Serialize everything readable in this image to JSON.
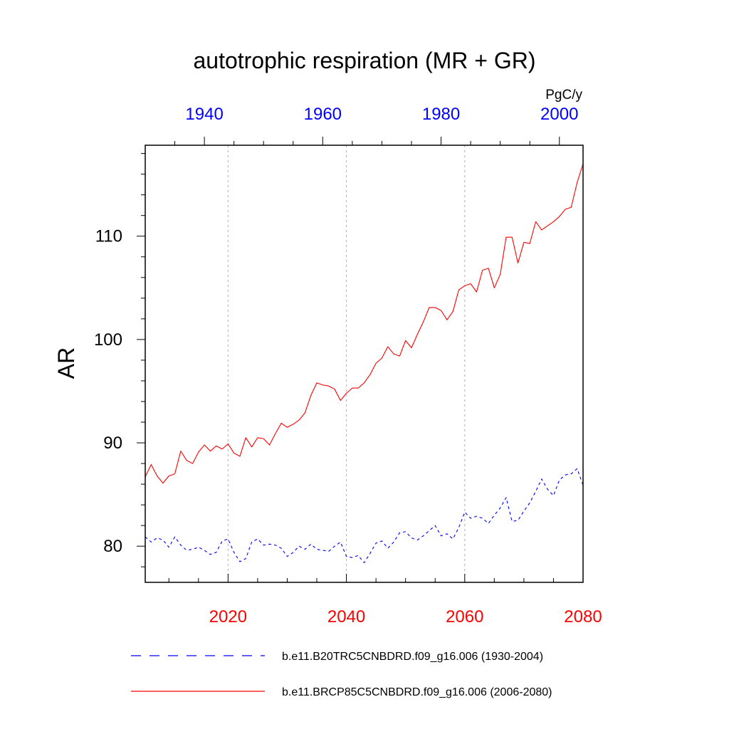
{
  "chart_data": {
    "type": "line",
    "title": "autotrophic respiration (MR + GR)",
    "ylabel": "AR",
    "units_label": "PgC/y",
    "ylim": [
      76.5,
      118.8
    ],
    "y_ticks": [
      80,
      90,
      100,
      110
    ],
    "y_tick_labels": [
      "80",
      "90",
      "100",
      "110"
    ],
    "top_axis": {
      "xlim": [
        1930,
        2004
      ],
      "ticks": [
        1940,
        1960,
        1980,
        2000
      ],
      "tick_labels": [
        "1940",
        "1960",
        "1980",
        "2000"
      ],
      "color": "#0000ff"
    },
    "bottom_axis": {
      "xlim": [
        2006,
        2080
      ],
      "ticks": [
        2020,
        2040,
        2060,
        2080
      ],
      "tick_labels": [
        "2020",
        "2040",
        "2060",
        "2080"
      ],
      "color": "#ff0000"
    },
    "grid": "vertical dotted lines at bottom axis labeled ticks",
    "legend_position": "bottom",
    "series": [
      {
        "name": "b.e11.B20TRC5CNBDRD.f09_g16.006 (1930-2004)",
        "axis": "top",
        "color": "#0000ff",
        "dash": "dashed",
        "x_start": 1930,
        "values": [
          80.9,
          80.4,
          80.8,
          80.6,
          79.9,
          80.9,
          80.1,
          79.6,
          79.7,
          79.9,
          79.6,
          79.2,
          79.4,
          80.5,
          80.7,
          79.4,
          78.5,
          78.8,
          80.4,
          80.7,
          80.1,
          80.2,
          80.1,
          79.8,
          79.0,
          79.4,
          80.0,
          79.7,
          80.2,
          79.7,
          79.6,
          79.5,
          80.0,
          80.4,
          79.0,
          78.9,
          79.1,
          78.4,
          79.3,
          80.3,
          80.5,
          79.8,
          80.4,
          81.3,
          81.4,
          80.8,
          80.6,
          81.0,
          81.5,
          82.0,
          81.0,
          81.2,
          80.7,
          81.8,
          83.3,
          82.7,
          82.9,
          82.7,
          82.2,
          83.0,
          83.7,
          84.7,
          82.4,
          82.5,
          83.4,
          84.2,
          85.3,
          86.5,
          85.5,
          84.9,
          86.4,
          86.9,
          87.0,
          87.5,
          85.9
        ]
      },
      {
        "name": "b.e11.BRCP85C5CNBDRD.f09_g16.006 (2006-2080)",
        "axis": "bottom",
        "color": "#ff0000",
        "dash": "solid",
        "x_start": 2006,
        "values": [
          86.7,
          87.9,
          86.8,
          86.1,
          86.8,
          87.0,
          89.2,
          88.3,
          88.0,
          89.1,
          89.8,
          89.2,
          89.7,
          89.4,
          89.9,
          89.0,
          88.7,
          90.5,
          89.6,
          90.5,
          90.4,
          89.8,
          90.9,
          91.9,
          91.5,
          91.8,
          92.2,
          92.9,
          94.6,
          95.8,
          95.6,
          95.5,
          95.2,
          94.1,
          94.8,
          95.3,
          95.3,
          95.8,
          96.6,
          97.7,
          98.2,
          99.3,
          98.6,
          98.4,
          99.9,
          99.2,
          100.5,
          101.7,
          103.1,
          103.1,
          102.8,
          101.9,
          102.7,
          104.8,
          105.2,
          105.4,
          104.6,
          106.7,
          106.9,
          105.0,
          106.3,
          109.9,
          109.9,
          107.4,
          109.4,
          109.3,
          111.4,
          110.6,
          111.0,
          111.4,
          111.9,
          112.6,
          112.8,
          115.2,
          117.0
        ]
      }
    ]
  }
}
